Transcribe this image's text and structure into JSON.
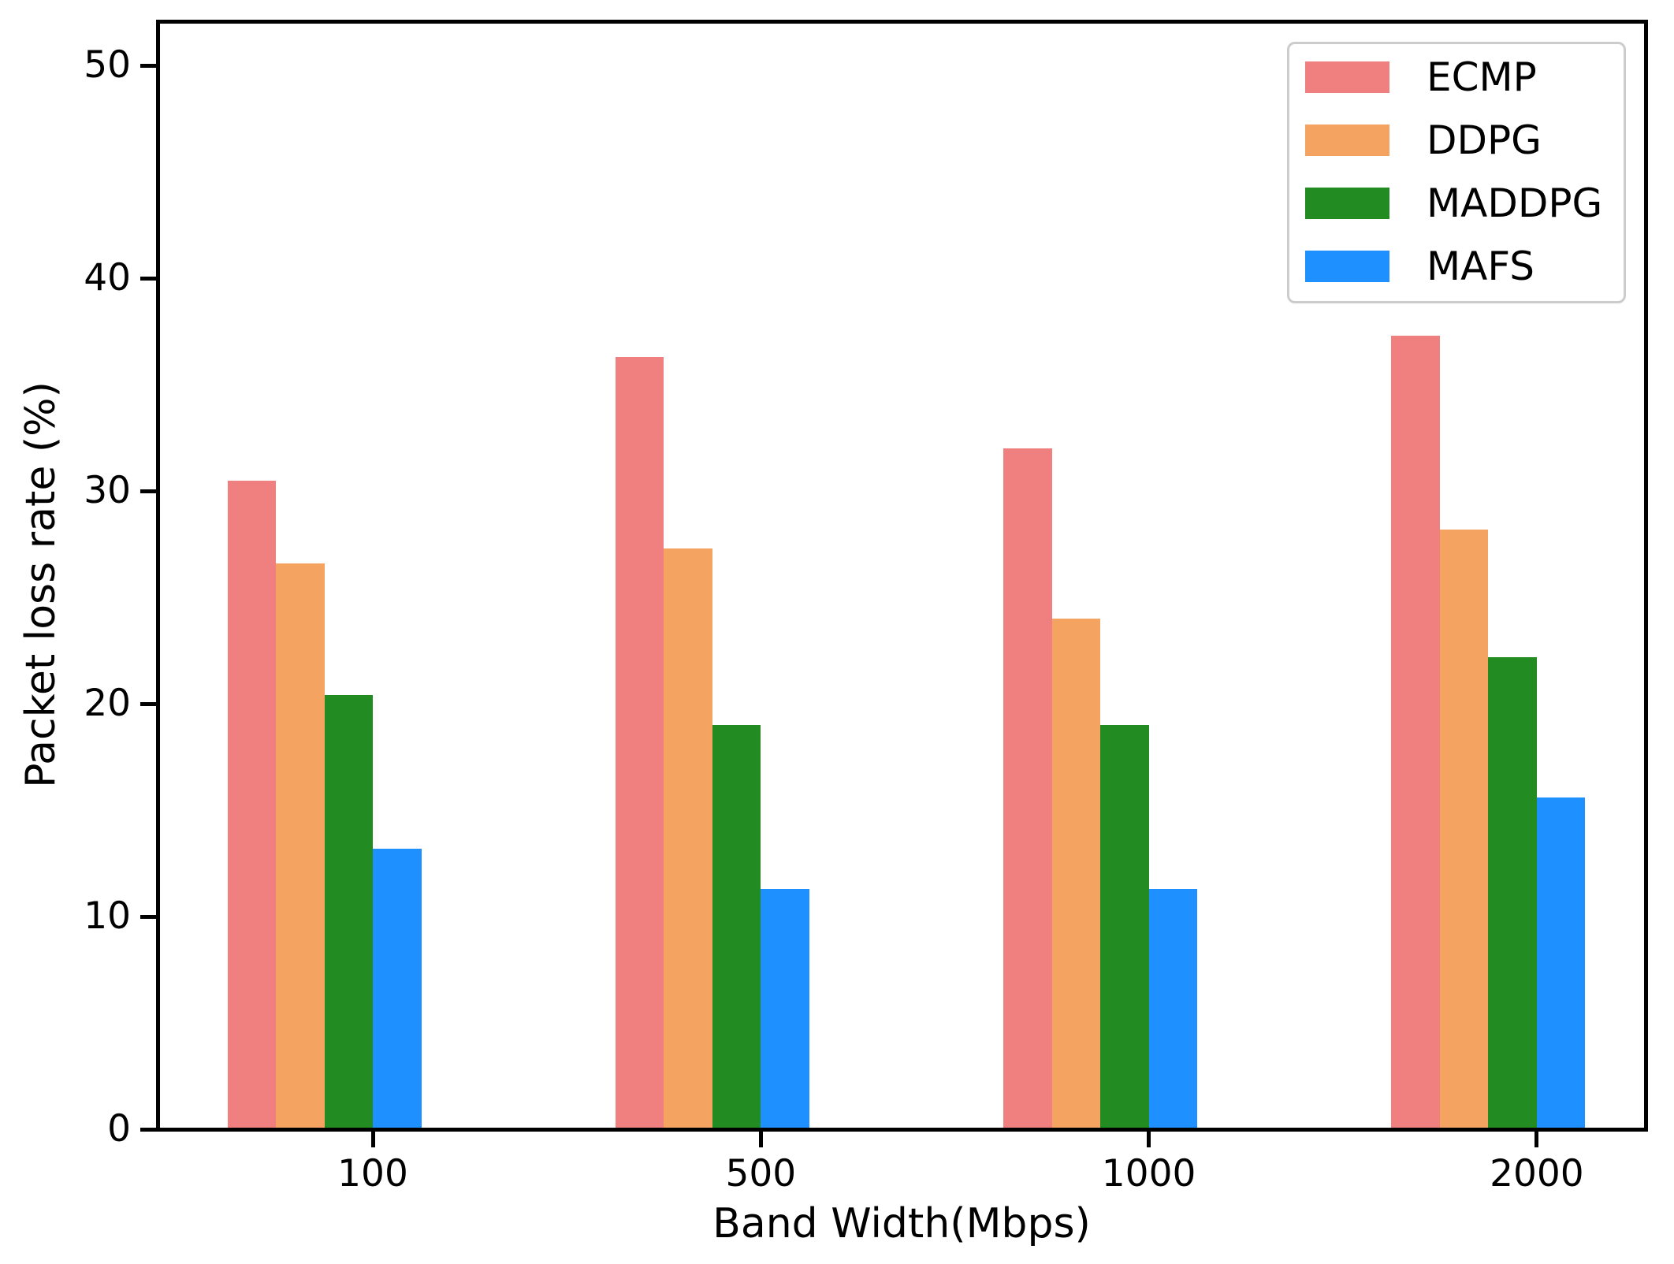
{
  "chart_data": {
    "type": "bar",
    "title": "",
    "xlabel": "Band Width(Mbps)",
    "ylabel": "Packet loss rate (%)",
    "categories": [
      "100",
      "500",
      "1000",
      "2000"
    ],
    "series": [
      {
        "name": "ECMP",
        "color": "#F08080",
        "values": [
          30.5,
          36.3,
          32.0,
          37.3
        ]
      },
      {
        "name": "DDPG",
        "color": "#F4A460",
        "values": [
          26.6,
          27.3,
          24.0,
          28.2
        ]
      },
      {
        "name": "MADDPG",
        "color": "#228B22",
        "values": [
          20.4,
          19.0,
          19.0,
          22.2
        ]
      },
      {
        "name": "MAFS",
        "color": "#1E90FF",
        "values": [
          13.2,
          11.3,
          11.3,
          15.6
        ]
      }
    ],
    "yticks": [
      0,
      10,
      20,
      30,
      40,
      50
    ],
    "ylim": [
      0,
      52.1
    ],
    "grid": false,
    "legend_position": "upper right",
    "axis_color": "#000000",
    "legend_border_color": "#cccccc",
    "background": "#ffffff"
  }
}
